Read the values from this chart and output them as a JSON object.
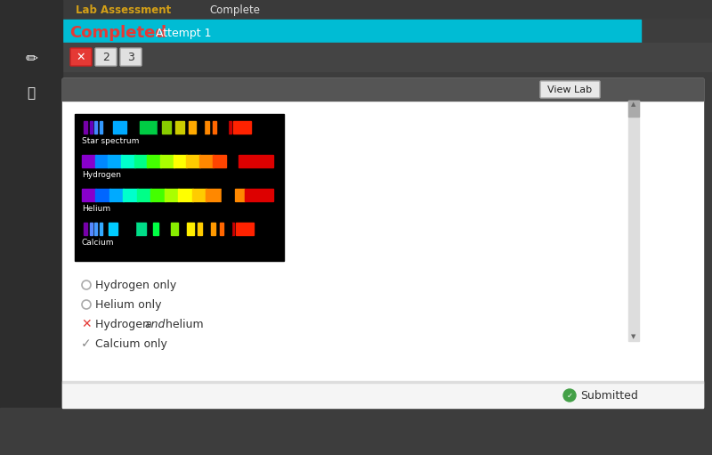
{
  "bg_dark": "#3d3d3d",
  "bg_white": "#ffffff",
  "header_bg": "#3d3d3d",
  "tab_active_color": "#00bcd4",
  "completed_text_color": "#e53935",
  "attempt_text_color": "#ffffff",
  "nav_label_color": "#d4a017",
  "complete_label_color": "#e0e0e0",
  "spectrum_labels": [
    "Star spectrum",
    "Hydrogen",
    "Helium",
    "Calcium"
  ],
  "answer_options": [
    {
      "text": "Hydrogen only",
      "marker": "radio",
      "selected": false
    },
    {
      "text": "Helium only",
      "marker": "radio",
      "selected": false
    },
    {
      "text": "Hydrogen ",
      "text2": "and",
      "text3": " helium",
      "marker": "x",
      "selected": true,
      "wrong": true
    },
    {
      "text": "Calcium only",
      "marker": "check",
      "selected": true,
      "wrong": false
    }
  ],
  "view_lab_btn": "View Lab",
  "submitted_text": "Submitted"
}
